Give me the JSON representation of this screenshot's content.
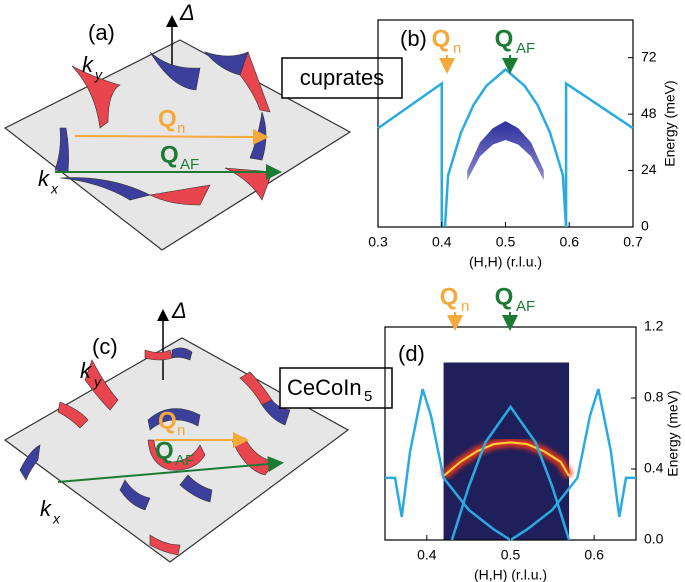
{
  "chart_data": [
    {
      "type": "line",
      "title": "(b)",
      "xlabel": "(H,H) (r.l.u.)",
      "ylabel": "Energy (meV)",
      "xlim": [
        0.3,
        0.7
      ],
      "ylim": [
        0,
        88
      ],
      "xticks": [
        0.3,
        0.4,
        0.5,
        0.6,
        0.7
      ],
      "yticks": [
        0,
        24,
        48,
        72
      ],
      "series": [
        {
          "color": "#29abe2",
          "x": [
            0.3,
            0.4,
            0.4
          ],
          "values": [
            42,
            61,
            0
          ]
        },
        {
          "color": "#29abe2",
          "x": [
            0.595,
            0.595,
            0.7
          ],
          "values": [
            0,
            61,
            42
          ]
        },
        {
          "color": "#29abe2",
          "x": [
            0.405,
            0.41,
            0.43,
            0.45,
            0.47,
            0.5,
            0.53,
            0.55,
            0.57,
            0.59,
            0.595
          ],
          "values": [
            0,
            22,
            40,
            52,
            60,
            67,
            60,
            52,
            40,
            22,
            0
          ]
        }
      ],
      "band": {
        "color": "#2e2f9a",
        "x": [
          0.44,
          0.46,
          0.48,
          0.5,
          0.52,
          0.54,
          0.56
        ],
        "upper": [
          24,
          36,
          42,
          45,
          42,
          36,
          24
        ],
        "lower": [
          20,
          30,
          35,
          37,
          35,
          30,
          20
        ]
      },
      "annotations": [
        {
          "main": "Q",
          "sub": "n",
          "color": "#f5a93a"
        },
        {
          "main": "Q",
          "sub": "AF",
          "color": "#1b7a34"
        }
      ]
    },
    {
      "type": "line",
      "title": "(d)",
      "xlabel": "(H,H) (r.l.u.)",
      "ylabel": "Energy (meV)",
      "xlim": [
        0.35,
        0.65
      ],
      "ylim": [
        0,
        1.2
      ],
      "xticks": [
        0.4,
        0.5,
        0.6
      ],
      "yticks": [
        {
          "value": 0,
          "label": "0.0"
        },
        0.4,
        0.8,
        1.2
      ],
      "heatmap": {
        "color": "#1f1f5c",
        "x": [
          0.42,
          0.57
        ],
        "y": [
          0,
          1.0
        ],
        "ridge": {
          "x": [
            0.42,
            0.44,
            0.46,
            0.48,
            0.5,
            0.52,
            0.54,
            0.56,
            0.57
          ],
          "values": [
            0.36,
            0.44,
            0.5,
            0.54,
            0.55,
            0.54,
            0.5,
            0.44,
            0.36
          ]
        }
      },
      "series": [
        {
          "color": "#29abe2",
          "x": [
            0.35,
            0.362,
            0.37,
            0.38,
            0.395,
            0.405,
            0.42,
            0.45,
            0.48,
            0.5
          ],
          "values": [
            0.35,
            0.35,
            0.13,
            0.5,
            0.85,
            0.7,
            0.35,
            0.17,
            0.06,
            0
          ]
        },
        {
          "color": "#29abe2",
          "x": [
            0.5,
            0.52,
            0.55,
            0.58,
            0.595,
            0.605,
            0.62,
            0.63,
            0.638,
            0.65
          ],
          "values": [
            0,
            0.06,
            0.17,
            0.35,
            0.7,
            0.85,
            0.5,
            0.13,
            0.35,
            0.35
          ]
        },
        {
          "color": "#29abe2",
          "x": [
            0.43,
            0.45,
            0.47,
            0.5,
            0.53,
            0.55,
            0.57
          ],
          "values": [
            0,
            0.3,
            0.55,
            0.75,
            0.55,
            0.3,
            0
          ]
        }
      ],
      "annotations": [
        {
          "main": "Q",
          "sub": "n",
          "color": "#f5a93a"
        },
        {
          "main": "Q",
          "sub": "AF",
          "color": "#1b7a34"
        }
      ]
    }
  ],
  "panels": {
    "a": {
      "label": "(a)",
      "delta": "Δ",
      "ky": {
        "main": "k",
        "sub": "y"
      },
      "kx": {
        "main": "k",
        "sub": "x"
      },
      "q_n": {
        "main": "Q",
        "sub": "n"
      },
      "q_af": {
        "main": "Q",
        "sub": "AF"
      },
      "material": "cuprates"
    },
    "c": {
      "label": "(c)",
      "delta": "Δ",
      "ky": {
        "main": "k",
        "sub": "y"
      },
      "kx": {
        "main": "k",
        "sub": "x"
      },
      "q_n": {
        "main": "Q",
        "sub": "n"
      },
      "q_af": {
        "main": "Q",
        "sub": "AF"
      },
      "material": {
        "main": "CeCoIn",
        "sub": "5"
      }
    }
  }
}
